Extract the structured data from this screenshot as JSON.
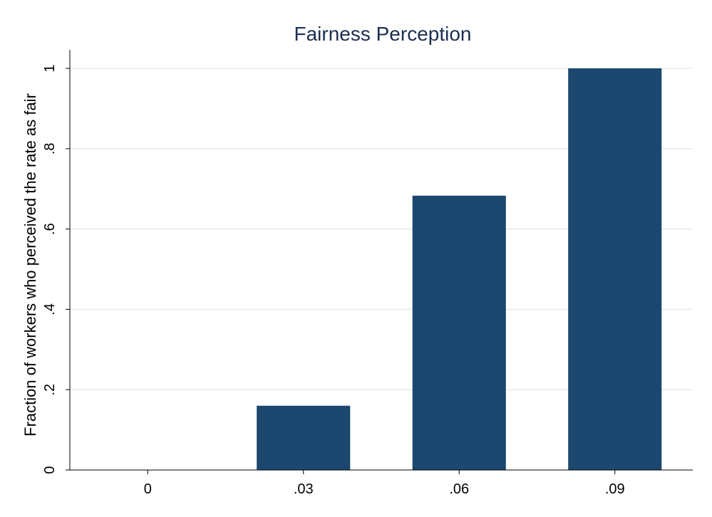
{
  "chart_data": {
    "type": "bar",
    "title": "Fairness Perception",
    "xlabel": "",
    "ylabel": "Fraction of workers who perceived the rate as fair",
    "categories": [
      "0",
      ".03",
      ".06",
      ".09"
    ],
    "values": [
      0,
      0.16,
      0.683,
      1.0
    ],
    "ylim": [
      0,
      1.05
    ],
    "yticks": [
      0,
      0.2,
      0.4,
      0.6,
      0.8,
      1
    ],
    "ytick_labels": [
      "0",
      ".2",
      ".4",
      ".6",
      ".8",
      "1"
    ],
    "grid": true,
    "legend": "none",
    "colors": {
      "bar": "#1c476f",
      "title": "#1c2f50",
      "grid": "#eaeaea",
      "axis": "#000000"
    }
  }
}
